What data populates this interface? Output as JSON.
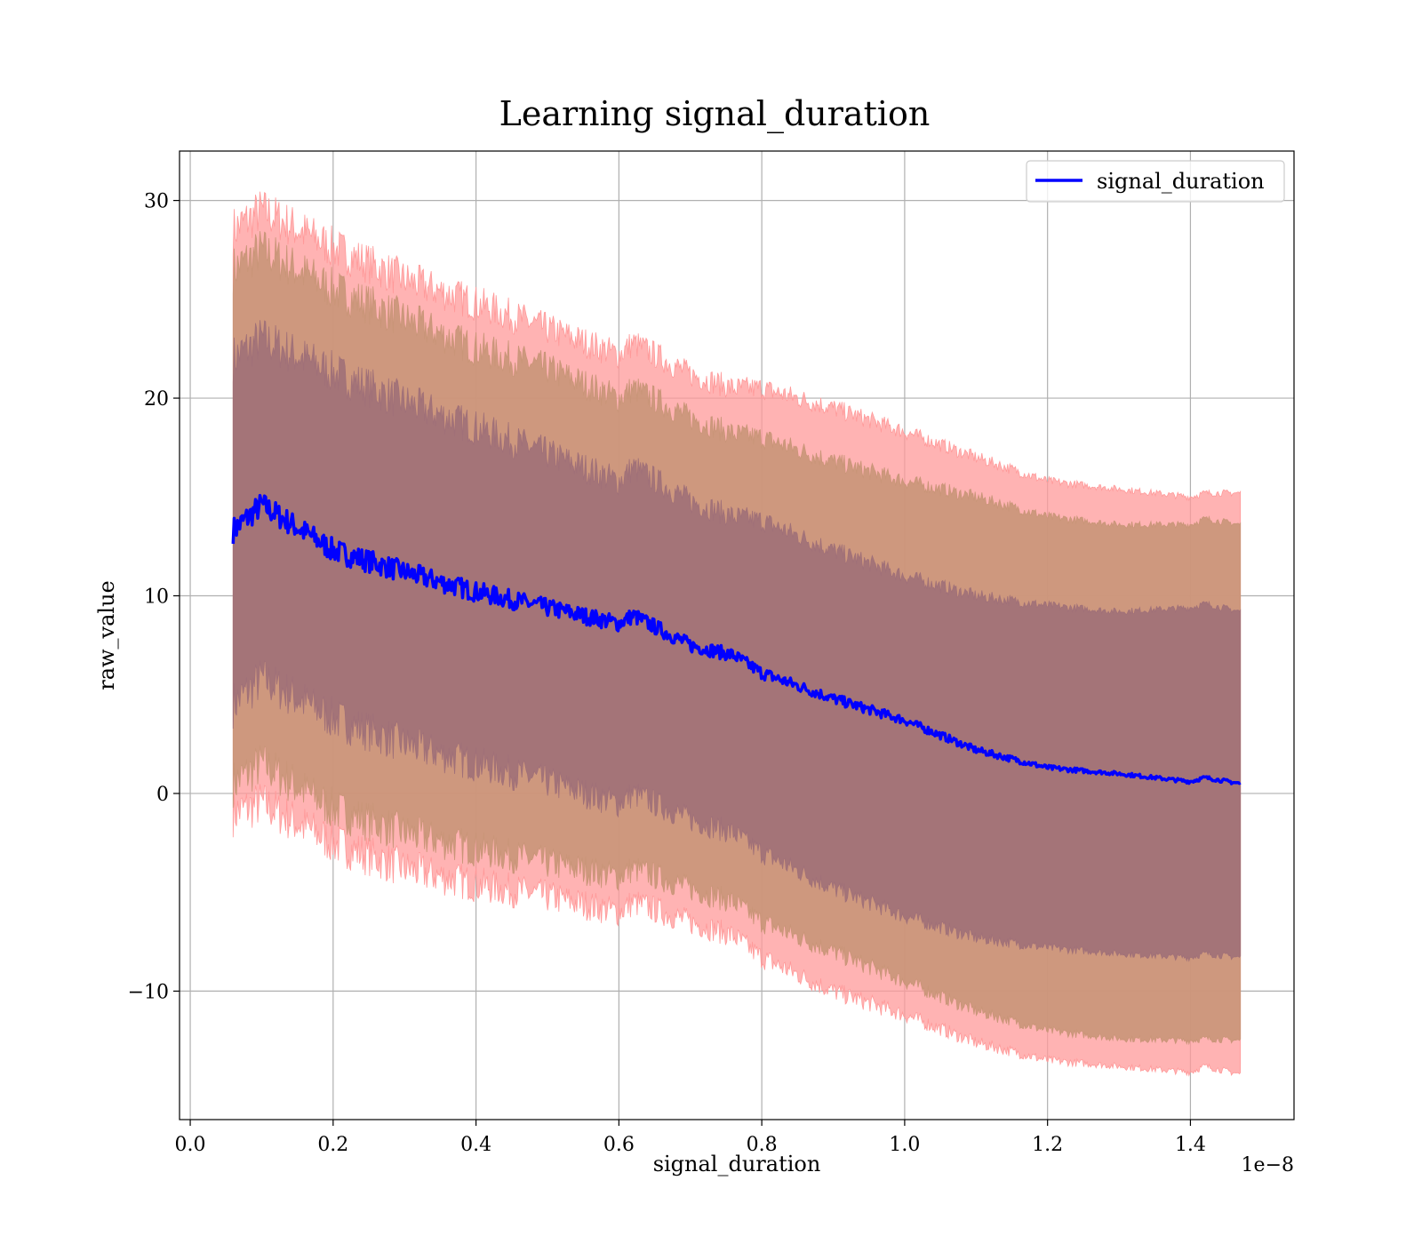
{
  "chart_data": {
    "type": "area",
    "title": "Learning signal_duration",
    "xlabel": "signal_duration",
    "ylabel": "raw_value",
    "x_offset_label": "1e−8",
    "xlim": [
      -0.015,
      1.545
    ],
    "ylim": [
      -16.5,
      32.5
    ],
    "xticks": [
      0.0,
      0.2,
      0.4,
      0.6,
      0.8,
      1.0,
      1.2,
      1.4
    ],
    "xtick_labels": [
      "0.0",
      "0.2",
      "0.4",
      "0.6",
      "0.8",
      "1.0",
      "1.2",
      "1.4"
    ],
    "yticks": [
      -10,
      0,
      10,
      20,
      30
    ],
    "ytick_labels": [
      "−10",
      "0",
      "10",
      "20",
      "30"
    ],
    "grid": true,
    "legend": {
      "position": "top-right",
      "entries": [
        "signal_duration"
      ]
    },
    "colors": {
      "line": "#0000ff",
      "band_outer": "#ff9999",
      "band_middle": "#c99578",
      "band_inner": "#a07078"
    },
    "x": [
      0.06,
      0.1,
      0.2,
      0.3,
      0.4,
      0.5,
      0.6,
      0.62,
      0.7,
      0.76,
      0.8,
      0.9,
      1.0,
      1.1,
      1.2,
      1.3,
      1.4,
      1.42,
      1.47
    ],
    "series": [
      {
        "name": "signal_duration",
        "values": [
          13.3,
          14.6,
          12.3,
          11.2,
          10.2,
          9.4,
          8.6,
          9.0,
          7.5,
          7.0,
          6.1,
          4.8,
          3.7,
          2.2,
          1.3,
          1.0,
          0.6,
          0.8,
          0.5
        ]
      }
    ],
    "bands": [
      {
        "sigma": 3,
        "upper": [
          28.5,
          29.5,
          27.6,
          26.0,
          24.8,
          23.5,
          22.2,
          22.8,
          21.2,
          20.5,
          20.5,
          19.5,
          18.3,
          17.0,
          15.8,
          15.4,
          15.0,
          15.2,
          15.2
        ],
        "lower": [
          -1.0,
          -0.5,
          -2.5,
          -3.8,
          -4.6,
          -5.2,
          -6.0,
          -5.5,
          -6.5,
          -7.2,
          -8.3,
          -10.0,
          -11.2,
          -12.6,
          -13.5,
          -13.8,
          -14.1,
          -13.8,
          -14.2
        ]
      },
      {
        "sigma": 2,
        "upper": [
          26.5,
          27.5,
          25.5,
          24.0,
          22.5,
          21.5,
          20.0,
          20.5,
          19.0,
          18.2,
          18.0,
          16.8,
          15.8,
          15.0,
          14.0,
          13.6,
          13.6,
          13.9,
          13.6
        ],
        "lower": [
          0.5,
          1.5,
          -0.8,
          -2.0,
          -2.8,
          -3.5,
          -4.2,
          -3.8,
          -4.8,
          -5.5,
          -6.5,
          -8.0,
          -9.5,
          -11.0,
          -12.0,
          -12.4,
          -12.5,
          -12.4,
          -12.5
        ]
      },
      {
        "sigma": 1,
        "upper": [
          22.0,
          23.0,
          21.3,
          19.8,
          18.5,
          17.2,
          15.8,
          16.5,
          14.8,
          14.0,
          13.8,
          12.3,
          11.0,
          10.0,
          9.5,
          9.2,
          9.4,
          9.6,
          9.2
        ],
        "lower": [
          4.5,
          5.8,
          3.8,
          2.5,
          1.5,
          0.6,
          -0.5,
          0.0,
          -1.3,
          -2.0,
          -3.0,
          -4.8,
          -6.2,
          -7.3,
          -7.8,
          -8.1,
          -8.3,
          -8.1,
          -8.3
        ]
      }
    ]
  }
}
